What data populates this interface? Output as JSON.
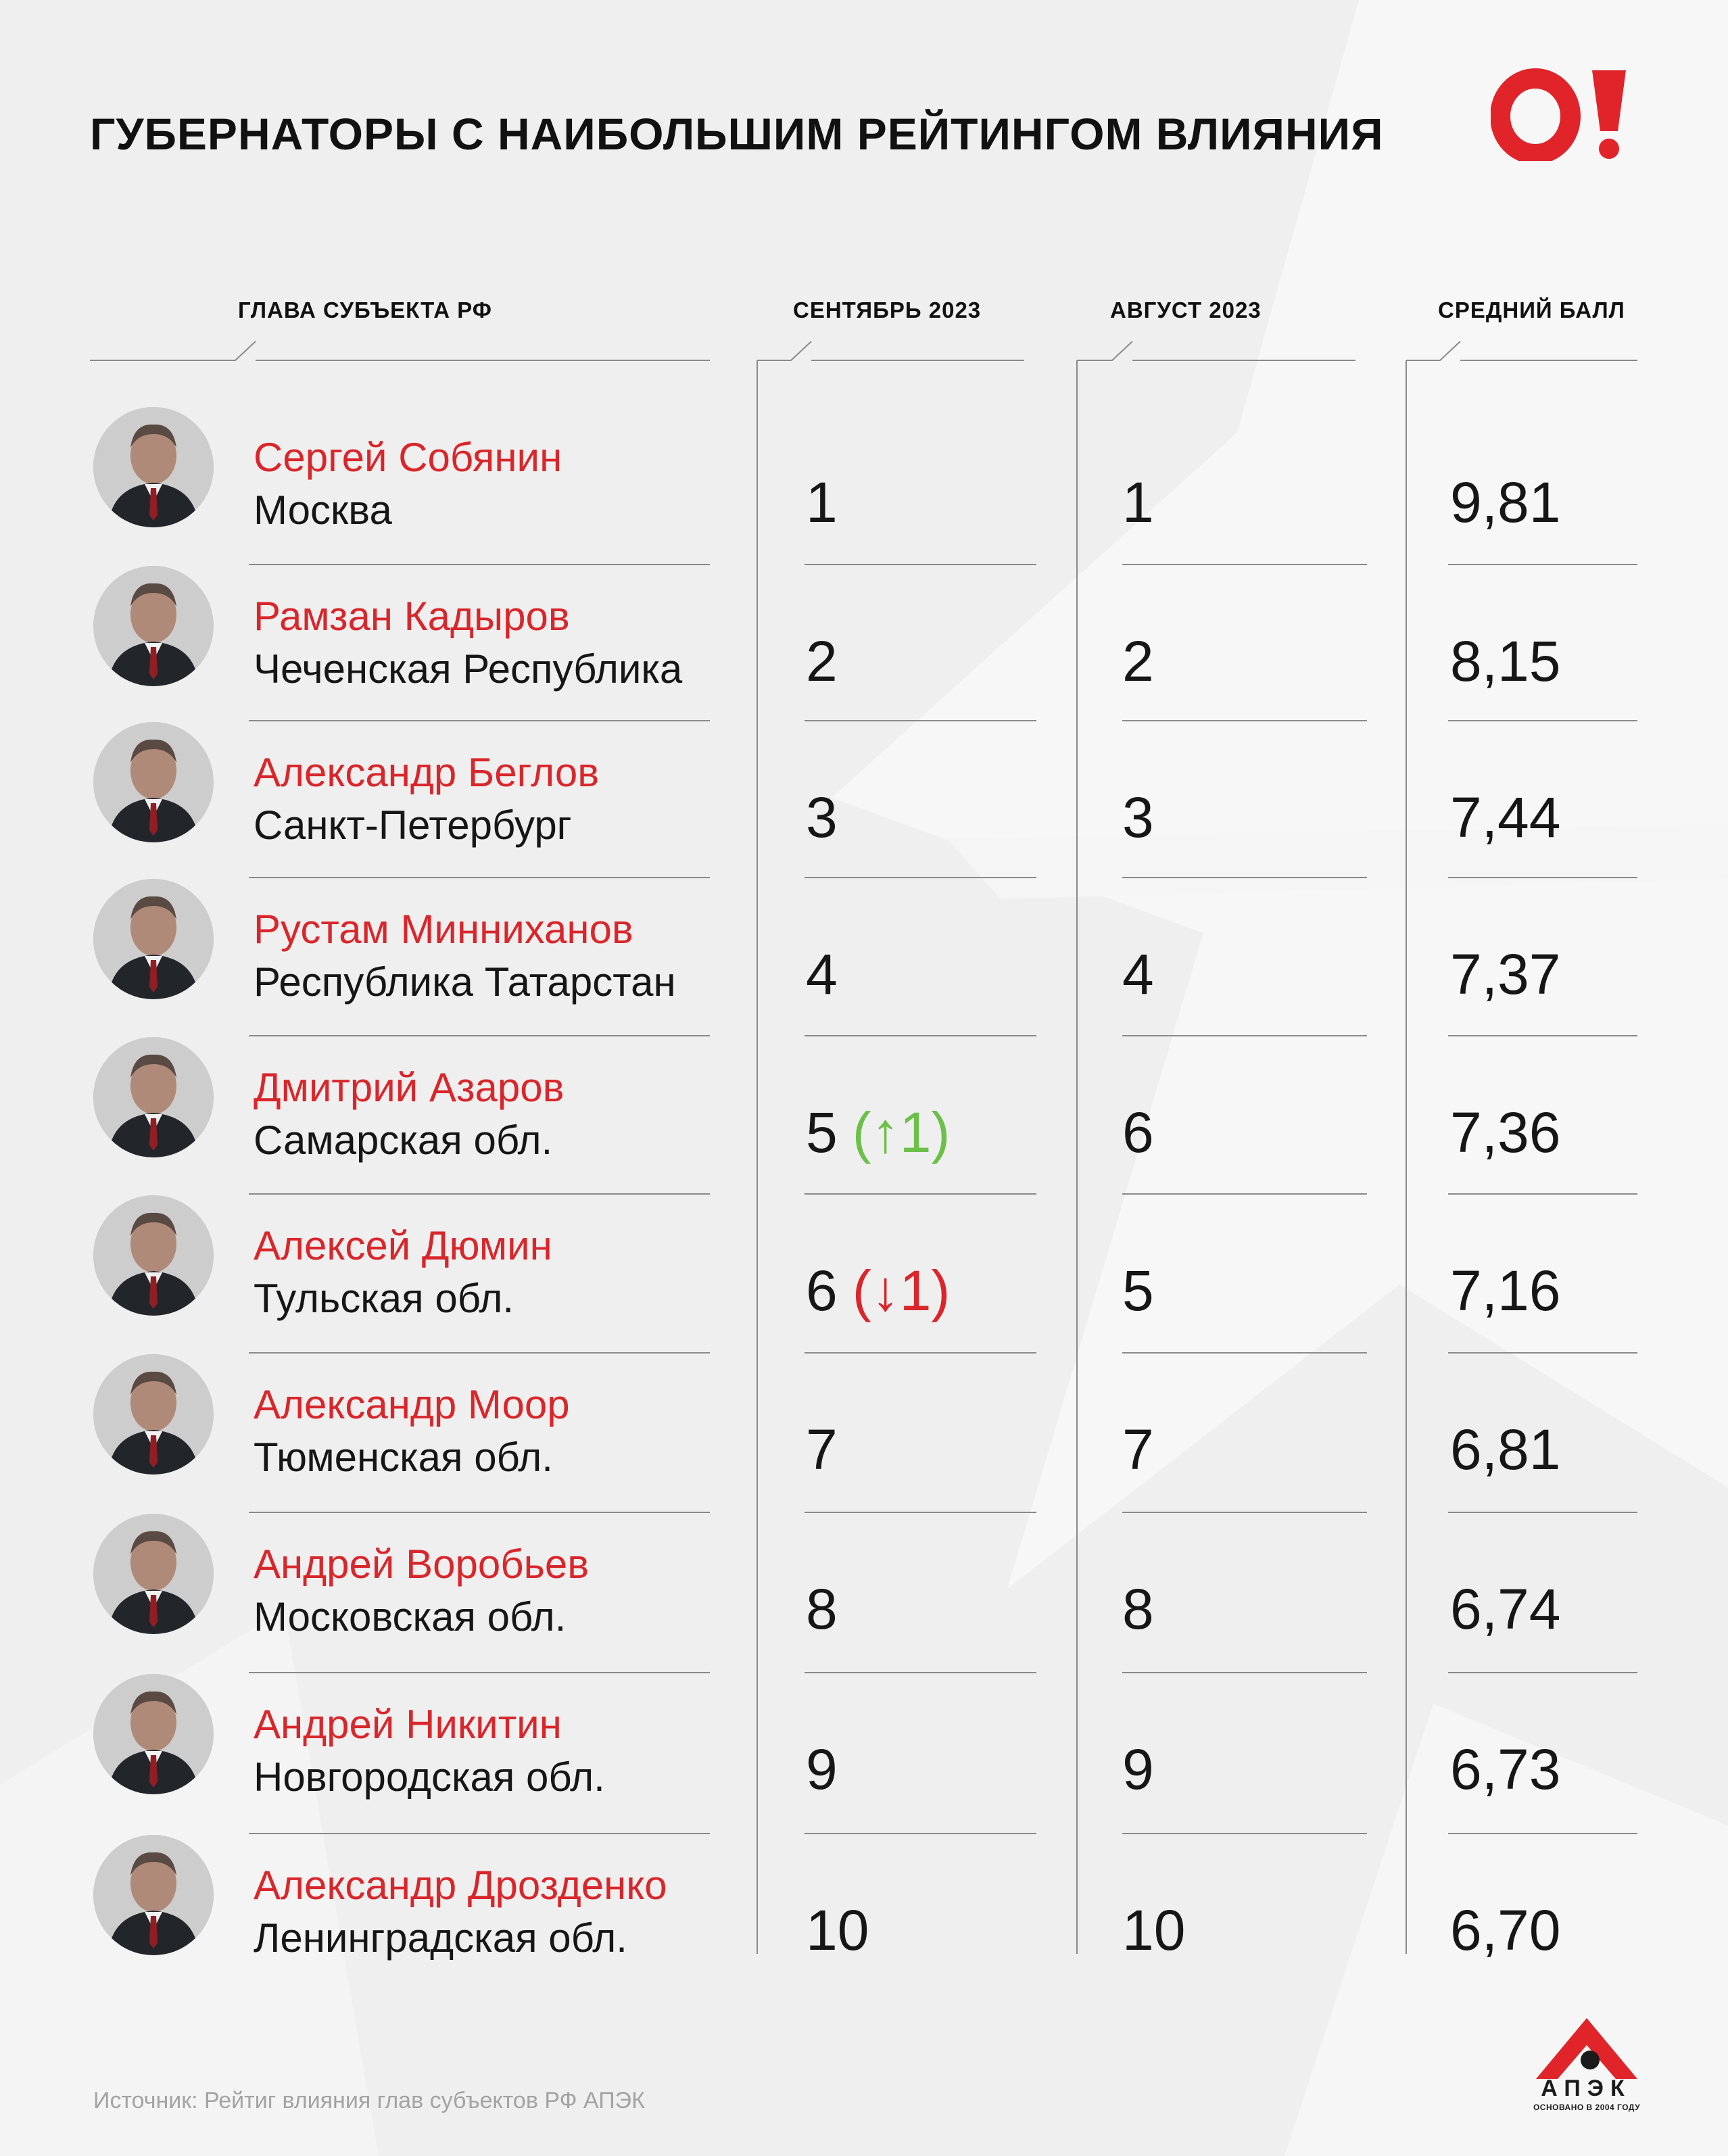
{
  "title": "ГУБЕРНАТОРЫ С НАИБОЛЬШИМ  РЕЙТИНГОМ ВЛИЯНИЯ",
  "brand": {
    "name": "O!",
    "color": "#e0242a"
  },
  "columns": {
    "head": "ГЛАВА СУБЪЕКТА РФ",
    "sep": "СЕНТЯБРЬ 2023",
    "aug": "АВГУСТ 2023",
    "score": "СРЕДНИЙ БАЛЛ"
  },
  "rows": [
    {
      "name": "Сергей Собянин",
      "region": "Москва",
      "sep": "1",
      "change": "",
      "change_dir": "",
      "aug": "1",
      "score": "9,81",
      "avatar": "portrait-icon"
    },
    {
      "name": "Рамзан Кадыров",
      "region": "Чеченская Республика",
      "sep": "2",
      "change": "",
      "change_dir": "",
      "aug": "2",
      "score": "8,15",
      "avatar": "portrait-icon"
    },
    {
      "name": "Александр Беглов",
      "region": "Санкт-Петербург",
      "sep": "3",
      "change": "",
      "change_dir": "",
      "aug": "3",
      "score": "7,44",
      "avatar": "portrait-icon"
    },
    {
      "name": "Рустам Минниханов",
      "region": "Республика Татарстан",
      "sep": "4",
      "change": "",
      "change_dir": "",
      "aug": "4",
      "score": "7,37",
      "avatar": "portrait-icon"
    },
    {
      "name": "Дмитрий Азаров",
      "region": "Самарская обл.",
      "sep": "5",
      "change": "(↑1)",
      "change_dir": "up",
      "aug": "6",
      "score": "7,36",
      "avatar": "portrait-icon"
    },
    {
      "name": "Алексей Дюмин",
      "region": "Тульская обл.",
      "sep": "6",
      "change": "(↓1)",
      "change_dir": "down",
      "aug": "5",
      "score": "7,16",
      "avatar": "portrait-icon"
    },
    {
      "name": "Александр Моор",
      "region": "Тюменская обл.",
      "sep": "7",
      "change": "",
      "change_dir": "",
      "aug": "7",
      "score": "6,81",
      "avatar": "portrait-icon"
    },
    {
      "name": "Андрей Воробьев",
      "region": "Московская обл.",
      "sep": "8",
      "change": "",
      "change_dir": "",
      "aug": "8",
      "score": "6,74",
      "avatar": "portrait-icon"
    },
    {
      "name": "Андрей Никитин",
      "region": "Новгородская обл.",
      "sep": "9",
      "change": "",
      "change_dir": "",
      "aug": "9",
      "score": "6,73",
      "avatar": "portrait-icon"
    },
    {
      "name": "Александр Дрозденко",
      "region": "Ленинградская обл.",
      "sep": "10",
      "change": "",
      "change_dir": "",
      "aug": "10",
      "score": "6,70",
      "avatar": "portrait-icon"
    }
  ],
  "source": "Источник: Рейтиг влияния глав субъектов РФ АПЭК",
  "apek": {
    "word": "АПЭК",
    "sub": "ОСНОВАНО В 2004 ГОДУ",
    "color": "#e0242a"
  },
  "colors": {
    "name": "#d9262b",
    "up": "#6cc04a",
    "down": "#d9262b",
    "text": "#161616",
    "line": "#888888"
  }
}
